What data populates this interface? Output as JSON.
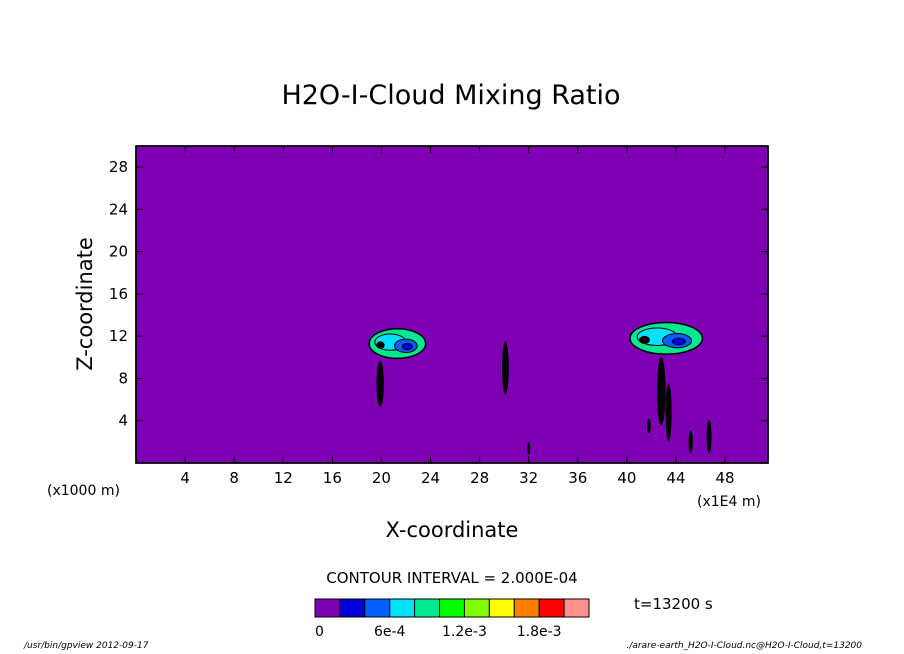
{
  "chart_data": {
    "type": "heatmap",
    "title": "H2O-I-Cloud Mixing Ratio",
    "xlabel": "X-coordinate",
    "ylabel": "Z-coordinate",
    "x_unit_label": "(x1000 m)",
    "x_scale_label": "(x1E4 m)",
    "xlim": [
      0,
      51.5
    ],
    "ylim": [
      0,
      30
    ],
    "x_ticks": [
      4,
      8,
      12,
      16,
      20,
      24,
      28,
      32,
      36,
      40,
      44,
      48
    ],
    "y_ticks": [
      4,
      8,
      12,
      16,
      20,
      24,
      28
    ],
    "contour_interval_text": "CONTOUR INTERVAL = 2.000E-04",
    "time_text": "t=13200 s",
    "background_color": "#7f00b4",
    "colorbar": {
      "colors": [
        "#7f00b4",
        "#0000d8",
        "#0060ff",
        "#00e0ff",
        "#00e890",
        "#00ff00",
        "#80ff00",
        "#ffff00",
        "#ff8000",
        "#ff0000",
        "#ff9090"
      ],
      "labels": [
        "0",
        "6e-4",
        "1.2e-3",
        "1.8e-3"
      ],
      "label_positions": [
        0,
        3,
        6,
        9
      ]
    },
    "features": [
      {
        "kind": "anvil",
        "x": 21.3,
        "z": 11.3,
        "width": 4.6,
        "height": 2.8
      },
      {
        "kind": "anvil",
        "x": 43.2,
        "z": 11.8,
        "width": 5.9,
        "height": 3.0
      },
      {
        "kind": "column",
        "x": 19.9,
        "z": 7.5,
        "width": 0.6,
        "height": 4.4
      },
      {
        "kind": "column",
        "x": 30.1,
        "z": 9.0,
        "width": 0.55,
        "height": 5.0
      },
      {
        "kind": "column",
        "x": 42.8,
        "z": 6.8,
        "width": 0.7,
        "height": 6.5
      },
      {
        "kind": "column",
        "x": 43.4,
        "z": 4.8,
        "width": 0.5,
        "height": 5.5
      },
      {
        "kind": "column",
        "x": 41.8,
        "z": 3.5,
        "width": 0.3,
        "height": 1.4
      },
      {
        "kind": "column",
        "x": 45.2,
        "z": 2.0,
        "width": 0.35,
        "height": 2.2
      },
      {
        "kind": "column",
        "x": 46.7,
        "z": 2.5,
        "width": 0.4,
        "height": 3.2
      },
      {
        "kind": "column",
        "x": 32.0,
        "z": 1.4,
        "width": 0.25,
        "height": 1.2
      }
    ]
  },
  "footer": {
    "left": "/usr/bin/gpview  2012-09-17",
    "right": "./arare-earth_H2O-I-Cloud.nc@H2O-I-Cloud,t=13200"
  }
}
